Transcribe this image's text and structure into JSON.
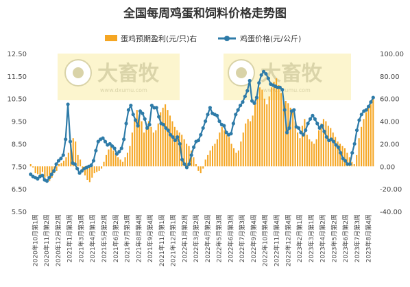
{
  "chart_data": {
    "type": "bar+line",
    "title": "全国每周鸡蛋和饲料价格走势图",
    "legend_position": "top-center",
    "grid": false,
    "watermark": {
      "logo_text": "大畜牧",
      "url_text": "www.dxumu.com"
    },
    "x_tick_labels": [
      "2020年10月第1周",
      "2020年11月第2周",
      "2020年12月第2周",
      "2021年1月第3周",
      "2021年3月第3周",
      "2021年4月第1周",
      "2021年5月第2周",
      "2021年6月第2周",
      "2021年7月第3周",
      "2021年8月第4周",
      "2021年9月第4周",
      "2021年11月第1周",
      "2021年12月第1周",
      "2022年1月第2周",
      "2022年3月第2周",
      "2022年4月第2周",
      "2022年5月第3周",
      "2022年6月第3周",
      "2022年7月第3周",
      "2022年9月第4周",
      "2022年10月第4周",
      "2022年11月第4周",
      "2022年12月第4周",
      "2023年2月第1周",
      "2023年3月第1周",
      "2023年4月第2周",
      "2023年5月第2周",
      "2023年6月第2周",
      "2023年7月第3周",
      "2023年8月第4周"
    ],
    "left_axis": {
      "min": 5.5,
      "max": 12.5,
      "ticks": [
        "5.50",
        "6.50",
        "7.50",
        "8.50",
        "9.50",
        "10.50",
        "11.50",
        "12.50"
      ]
    },
    "right_axis": {
      "min": -40,
      "max": 100,
      "ticks": [
        "-40.00",
        "-20.00",
        "0.00",
        "20.00",
        "40.00",
        "60.00",
        "80.00",
        "100.00"
      ]
    },
    "series": [
      {
        "name": "蛋鸡预期盈利(元/只)右",
        "kind": "bar",
        "axis": "right",
        "color": "#F5A623",
        "values": [
          2,
          -1,
          -6,
          -7,
          -8,
          -5,
          -10,
          -9,
          -13,
          -10,
          -6,
          -4,
          2,
          3,
          5,
          8,
          12,
          20,
          25,
          22,
          10,
          6,
          -4,
          -8,
          -12,
          -14,
          -10,
          -6,
          -5,
          -4,
          -2,
          4,
          10,
          15,
          18,
          14,
          12,
          8,
          6,
          4,
          8,
          12,
          18,
          30,
          42,
          50,
          45,
          40,
          30,
          38,
          40,
          35,
          30,
          32,
          38,
          48,
          52,
          55,
          50,
          45,
          40,
          35,
          32,
          30,
          28,
          24,
          20,
          18,
          14,
          8,
          2,
          -4,
          -6,
          -2,
          6,
          10,
          14,
          18,
          20,
          24,
          30,
          35,
          32,
          28,
          26,
          20,
          16,
          12,
          14,
          22,
          30,
          38,
          42,
          40,
          45,
          55,
          62,
          70,
          68,
          60,
          55,
          62,
          70,
          75,
          78,
          72,
          65,
          60,
          58,
          56,
          52,
          48,
          40,
          30,
          25,
          36,
          42,
          28,
          24,
          22,
          20,
          24,
          32,
          38,
          42,
          40,
          36,
          34,
          30,
          26,
          22,
          20,
          18,
          16,
          12,
          8,
          4,
          2,
          10,
          25,
          35,
          42,
          48,
          52,
          55,
          60
        ]
      },
      {
        "name": "鸡蛋价格(元/公斤)",
        "kind": "line",
        "axis": "left",
        "color": "#2E7BA8",
        "values": [
          7.15,
          7.05,
          7.0,
          6.95,
          7.05,
          7.1,
          6.9,
          6.85,
          7.0,
          7.15,
          7.3,
          7.6,
          7.75,
          7.85,
          8.0,
          8.7,
          10.25,
          8.6,
          7.65,
          7.6,
          7.4,
          7.2,
          7.3,
          7.4,
          7.45,
          7.5,
          7.55,
          7.75,
          8.2,
          8.6,
          8.7,
          8.75,
          8.6,
          8.45,
          8.5,
          8.4,
          8.3,
          8.05,
          8.15,
          8.3,
          8.7,
          9.4,
          10.0,
          10.2,
          9.8,
          9.55,
          9.3,
          9.95,
          9.85,
          9.6,
          9.2,
          9.35,
          10.2,
          10.1,
          10.1,
          9.7,
          9.4,
          9.35,
          9.2,
          9.1,
          8.9,
          8.8,
          8.65,
          8.8,
          8.5,
          7.8,
          7.6,
          7.45,
          7.6,
          8.0,
          8.35,
          8.6,
          8.65,
          8.9,
          9.2,
          9.5,
          9.8,
          10.1,
          9.85,
          9.8,
          9.75,
          9.5,
          9.35,
          9.3,
          9.0,
          8.9,
          8.95,
          9.4,
          9.8,
          10.0,
          10.2,
          10.35,
          10.6,
          10.85,
          11.3,
          10.4,
          10.3,
          10.55,
          11.2,
          11.55,
          11.7,
          11.6,
          11.4,
          11.15,
          11.1,
          11.05,
          11.0,
          11.0,
          10.9,
          10.0,
          9.0,
          9.2,
          9.95,
          10.0,
          9.25,
          9.2,
          9.0,
          8.9,
          9.1,
          9.4,
          9.6,
          9.75,
          9.6,
          9.4,
          9.2,
          9.3,
          9.05,
          8.8,
          8.65,
          8.7,
          8.6,
          8.45,
          8.35,
          8.1,
          7.85,
          7.75,
          7.6,
          7.6,
          8.1,
          8.5,
          9.1,
          9.55,
          9.8,
          9.95,
          10.0,
          10.15,
          10.35,
          10.55
        ]
      }
    ]
  }
}
